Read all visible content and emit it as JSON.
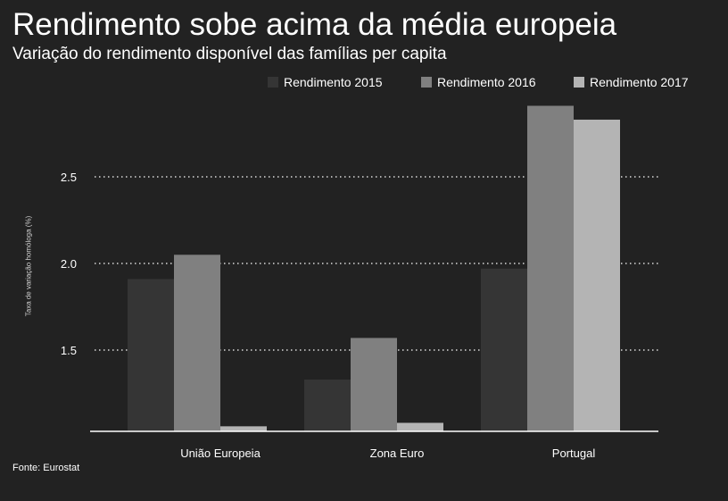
{
  "title": "Rendimento sobe acima da média europeia",
  "subtitle": "Variação do rendimento disponível das famílias per capita",
  "source": "Fonte: Eurostat",
  "colors": {
    "background": "#222222",
    "series_2015": "#353535",
    "series_2016": "#808080",
    "series_2017": "#b4b4b4",
    "gridline": "#ffffff",
    "text": "#ffffff"
  },
  "chart_data": {
    "type": "bar",
    "title": "Rendimento sobe acima da média europeia",
    "subtitle": "Variação do rendimento disponível das famílias per capita",
    "xlabel": "",
    "ylabel": "Taxa de variação homóloga (%)",
    "categories": [
      "União Europeia",
      "Zona Euro",
      "Portugal"
    ],
    "series": [
      {
        "name": "Rendimento 2015",
        "values": [
          1.91,
          1.33,
          1.97
        ]
      },
      {
        "name": "Rendimento 2016",
        "values": [
          2.05,
          1.57,
          2.91
        ]
      },
      {
        "name": "Rendimento 2017",
        "values": [
          1.06,
          1.08,
          2.83
        ]
      }
    ],
    "yticks": [
      1.5,
      2.0,
      2.5
    ],
    "ytick_labels": [
      "1.5",
      "2.0",
      "2.5"
    ],
    "ylim": [
      1.04,
      3.0
    ],
    "grid": "horizontal dotted",
    "legend_position": "top-right"
  }
}
